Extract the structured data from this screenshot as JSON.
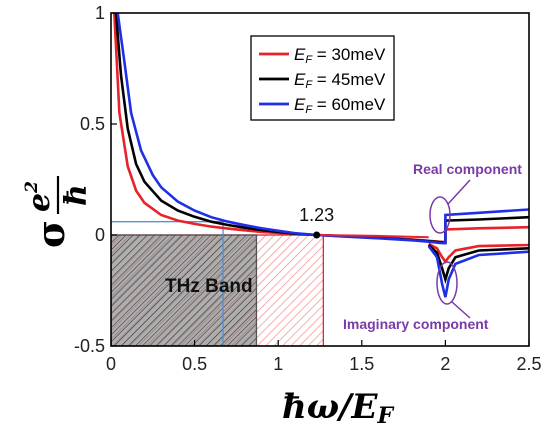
{
  "chart_data": {
    "type": "line",
    "xlabel": "ħω/E",
    "xlabel_sub": "F",
    "ylabel": {
      "symbol": "σ",
      "numerator": "e",
      "numerator_exp": "2",
      "denominator": "ħ"
    },
    "xlim": [
      0,
      2.5
    ],
    "ylim": [
      -0.5,
      1
    ],
    "xticks": [
      {
        "value": 0,
        "label": "0"
      },
      {
        "value": 0.5,
        "label": "0.5"
      },
      {
        "value": 1,
        "label": "1"
      },
      {
        "value": 1.5,
        "label": "1.5"
      },
      {
        "value": 2,
        "label": "2"
      },
      {
        "value": 2.5,
        "label": "2.5"
      }
    ],
    "yticks": [
      {
        "value": -0.5,
        "label": "-0.5"
      },
      {
        "value": 0,
        "label": "0"
      },
      {
        "value": 0.5,
        "label": "0.5"
      },
      {
        "value": 1,
        "label": "1"
      }
    ],
    "grid": false,
    "legend_position": "top-right",
    "series": [
      {
        "name": "E = 30meV",
        "name_main": "E",
        "name_sub": "F",
        "name_rest": " = 30meV",
        "color": "#e8222a",
        "real": [
          [
            0.02,
            1.0
          ],
          [
            0.05,
            0.55
          ],
          [
            0.1,
            0.31
          ],
          [
            0.15,
            0.2
          ],
          [
            0.2,
            0.145
          ],
          [
            0.3,
            0.09
          ],
          [
            0.4,
            0.065
          ],
          [
            0.5,
            0.05
          ],
          [
            0.6,
            0.038
          ],
          [
            0.7,
            0.029
          ],
          [
            0.8,
            0.021
          ],
          [
            0.9,
            0.014
          ],
          [
            1.0,
            0.009
          ],
          [
            1.1,
            0.004
          ],
          [
            1.23,
            0
          ],
          [
            1.4,
            -0.005
          ],
          [
            1.6,
            -0.012
          ],
          [
            1.8,
            -0.02
          ],
          [
            1.9,
            -0.026
          ],
          [
            1.96,
            -0.03
          ],
          [
            1.99,
            -0.031
          ]
        ],
        "real_step": [
          [
            2.0,
            0.025
          ],
          [
            2.2,
            0.03
          ],
          [
            2.5,
            0.035
          ]
        ],
        "imag": [
          [
            1.9,
            -0.04
          ],
          [
            1.95,
            -0.06
          ],
          [
            1.98,
            -0.1
          ],
          [
            2.0,
            -0.12
          ],
          [
            2.02,
            -0.1
          ],
          [
            2.06,
            -0.07
          ],
          [
            2.2,
            -0.05
          ],
          [
            2.5,
            -0.045
          ]
        ]
      },
      {
        "name": "E = 45meV",
        "name_main": "E",
        "name_sub": "F",
        "name_rest": " = 45meV",
        "color": "#000000",
        "real": [
          [
            0.03,
            1.0
          ],
          [
            0.06,
            0.72
          ],
          [
            0.1,
            0.48
          ],
          [
            0.15,
            0.32
          ],
          [
            0.2,
            0.24
          ],
          [
            0.3,
            0.155
          ],
          [
            0.4,
            0.11
          ],
          [
            0.5,
            0.082
          ],
          [
            0.6,
            0.06
          ],
          [
            0.7,
            0.045
          ],
          [
            0.8,
            0.033
          ],
          [
            0.9,
            0.022
          ],
          [
            1.0,
            0.014
          ],
          [
            1.1,
            0.006
          ],
          [
            1.23,
            0
          ],
          [
            1.4,
            -0.006
          ],
          [
            1.6,
            -0.013
          ],
          [
            1.8,
            -0.022
          ],
          [
            1.9,
            -0.028
          ],
          [
            1.96,
            -0.032
          ],
          [
            1.99,
            -0.034
          ]
        ],
        "real_step": [
          [
            2.0,
            0.065
          ],
          [
            2.2,
            0.07
          ],
          [
            2.5,
            0.08
          ]
        ],
        "imag": [
          [
            1.9,
            -0.045
          ],
          [
            1.95,
            -0.08
          ],
          [
            1.98,
            -0.15
          ],
          [
            2.0,
            -0.2
          ],
          [
            2.02,
            -0.15
          ],
          [
            2.06,
            -0.1
          ],
          [
            2.2,
            -0.07
          ],
          [
            2.5,
            -0.06
          ]
        ]
      },
      {
        "name": "E = 60meV",
        "name_main": "E",
        "name_sub": "F",
        "name_rest": " = 60meV",
        "color": "#1f2fe8",
        "real": [
          [
            0.04,
            1.0
          ],
          [
            0.08,
            0.78
          ],
          [
            0.12,
            0.55
          ],
          [
            0.18,
            0.38
          ],
          [
            0.25,
            0.27
          ],
          [
            0.3,
            0.215
          ],
          [
            0.4,
            0.15
          ],
          [
            0.5,
            0.11
          ],
          [
            0.6,
            0.08
          ],
          [
            0.7,
            0.06
          ],
          [
            0.8,
            0.044
          ],
          [
            0.9,
            0.03
          ],
          [
            1.0,
            0.019
          ],
          [
            1.1,
            0.008
          ],
          [
            1.23,
            0
          ],
          [
            1.4,
            -0.007
          ],
          [
            1.6,
            -0.015
          ],
          [
            1.8,
            -0.024
          ],
          [
            1.9,
            -0.03
          ],
          [
            1.96,
            -0.035
          ],
          [
            1.99,
            -0.037
          ]
        ],
        "real_step": [
          [
            2.0,
            0.09
          ],
          [
            2.2,
            0.1
          ],
          [
            2.5,
            0.115
          ]
        ],
        "imag": [
          [
            1.9,
            -0.05
          ],
          [
            1.95,
            -0.1
          ],
          [
            1.98,
            -0.22
          ],
          [
            2.0,
            -0.28
          ],
          [
            2.02,
            -0.2
          ],
          [
            2.06,
            -0.13
          ],
          [
            2.2,
            -0.09
          ],
          [
            2.5,
            -0.075
          ]
        ]
      }
    ],
    "highlight_point": {
      "x": 1.23,
      "y": 0,
      "label": "1.23"
    },
    "thz_band_label": "THz Band",
    "regions": [
      {
        "name": "blue-band",
        "x": [
          0,
          0.67
        ],
        "y": [
          -0.5,
          0.06
        ],
        "color": "#4a90d9"
      },
      {
        "name": "gray-band",
        "x": [
          0,
          0.87
        ],
        "y": [
          -0.5,
          0
        ],
        "color": "#555555"
      },
      {
        "name": "red-band",
        "x": [
          0,
          1.27
        ],
        "y": [
          -0.5,
          0
        ],
        "color": "#e8222a"
      }
    ],
    "annotations": [
      {
        "text": "Real component",
        "at": [
          2.0,
          0.08
        ]
      },
      {
        "text": "Imaginary component",
        "at": [
          2.0,
          -0.2
        ]
      }
    ],
    "accent_color": "#7a3aa8"
  }
}
